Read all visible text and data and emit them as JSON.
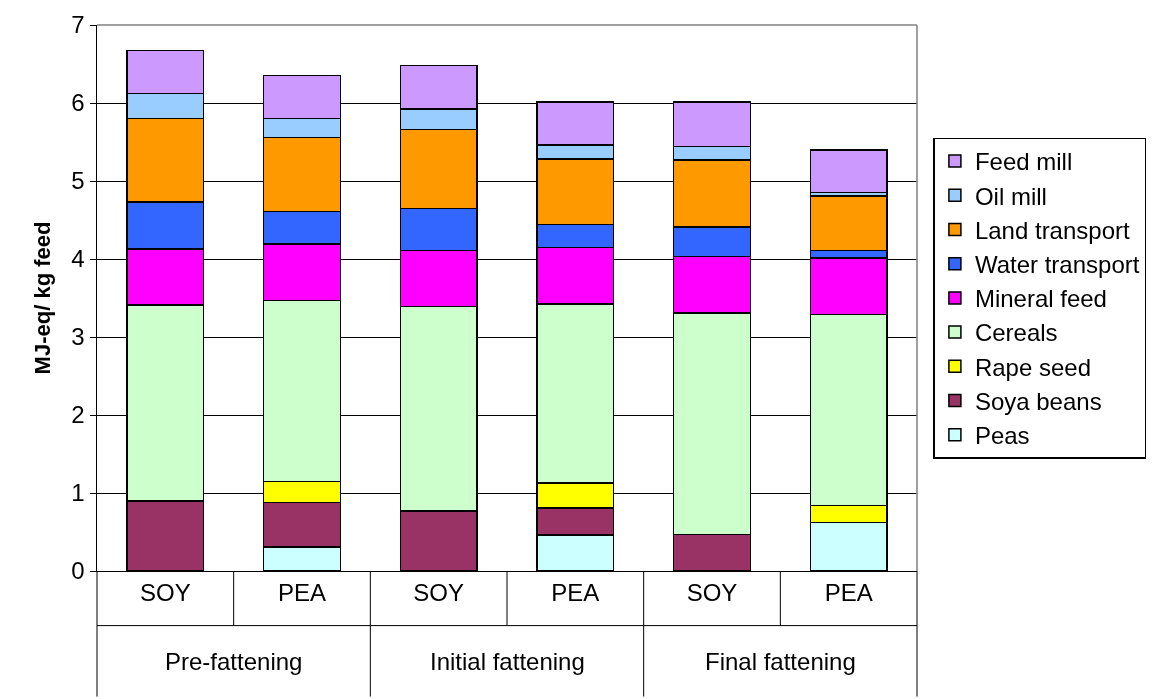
{
  "chart_data": {
    "type": "bar",
    "stacked": true,
    "ylabel": "MJ-eq/ kg feed",
    "categories": [
      "SOY",
      "PEA",
      "SOY",
      "PEA",
      "SOY",
      "PEA"
    ],
    "annotations": [
      "Pre-fattening",
      "Initial fattening",
      "Final fattening"
    ],
    "series": [
      {
        "name": "Peas",
        "color": "#ccffff",
        "values": [
          0,
          0.31,
          0,
          0.46,
          0,
          0.62
        ]
      },
      {
        "name": "Soya beans",
        "color": "#993366",
        "values": [
          0.9,
          0.57,
          0.77,
          0.35,
          0.47,
          0
        ]
      },
      {
        "name": "Rape seed",
        "color": "#ffff00",
        "values": [
          0,
          0.27,
          0,
          0.32,
          0,
          0.22
        ]
      },
      {
        "name": "Cereals",
        "color": "#ccffcc",
        "values": [
          2.51,
          2.32,
          2.62,
          2.29,
          2.84,
          2.45
        ]
      },
      {
        "name": "Mineral feed",
        "color": "#ff00ff",
        "values": [
          0.72,
          0.72,
          0.72,
          0.73,
          0.72,
          0.72
        ]
      },
      {
        "name": "Water transport",
        "color": "#3366ff",
        "values": [
          0.6,
          0.42,
          0.54,
          0.29,
          0.38,
          0.1
        ]
      },
      {
        "name": "Land transport",
        "color": "#ff9900",
        "values": [
          1.07,
          0.95,
          1.01,
          0.84,
          0.86,
          0.7
        ]
      },
      {
        "name": "Oil mill",
        "color": "#99ccff",
        "values": [
          0.32,
          0.24,
          0.26,
          0.18,
          0.17,
          0.04
        ]
      },
      {
        "name": "Feed mill",
        "color": "#cc99ff",
        "values": [
          0.55,
          0.55,
          0.56,
          0.55,
          0.57,
          0.55
        ]
      }
    ],
    "ylim": [
      0,
      7
    ],
    "yticks": [
      0,
      1,
      2,
      3,
      4,
      5,
      6,
      7
    ],
    "grid": "y",
    "legend": "right"
  }
}
